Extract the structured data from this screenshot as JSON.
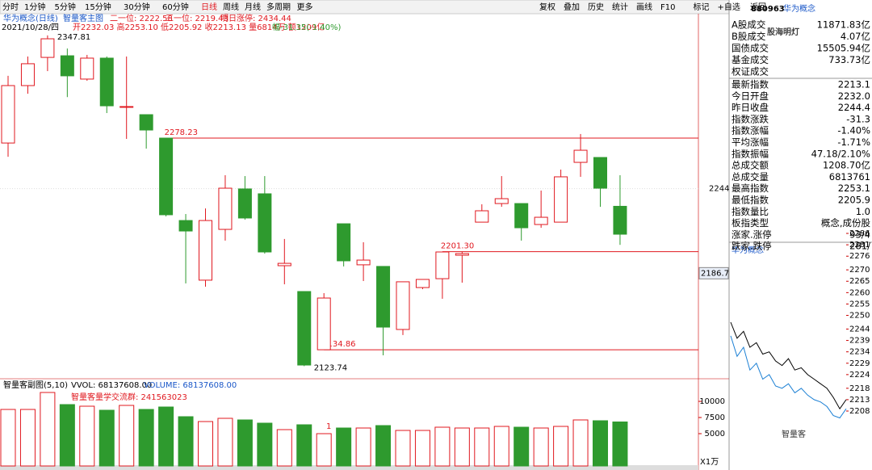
{
  "toolbar": {
    "left": [
      "分时",
      "1分钟",
      "5分钟",
      "15分钟",
      "30分钟",
      "60分钟",
      "日线",
      "周线",
      "月线",
      "多周期",
      "更多"
    ],
    "right": [
      "复权",
      "叠加",
      "历史",
      "统计",
      "画线",
      "F10",
      "标记",
      "+自选",
      "返回"
    ]
  },
  "info": {
    "name": "华为概念(日线)",
    "indicator": "智量客主图",
    "l1": "二一位: 2222.58",
    "l2": "三一位: 2219.43",
    "l3": "明日涨停: 2434.44",
    "date": "2021/10/28/四",
    "detail": "开2232.03 高2253.10 低2205.92 收2213.13 量6814万 额1209亿",
    "change": "幅-31.35(-1.40%)"
  },
  "volume_header": {
    "name": "智量客副图(5,10)",
    "vvol": "VVOL: 68137608.00",
    "volume": "VOLUME: 68137608.00",
    "group": "智量客量学交流群: 241563023",
    "marker": "1",
    "unit": "X1万"
  },
  "side": {
    "code": "880963",
    "name": "华为概念",
    "market": [
      [
        "A股成交",
        "11871.83亿"
      ],
      [
        "B股成交",
        "4.07亿"
      ],
      [
        "国债成交",
        "15505.94亿"
      ],
      [
        "基金成交",
        "733.73亿"
      ],
      [
        "权证成交",
        ""
      ]
    ],
    "stats": [
      [
        "最新指数",
        "2213.1"
      ],
      [
        "今日开盘",
        "2232.0"
      ],
      [
        "昨日收盘",
        "2244.4"
      ],
      [
        "指数涨跌",
        "-31.3"
      ],
      [
        "指数涨幅",
        "-1.40%"
      ],
      [
        "平均涨幅",
        "-1.71%"
      ],
      [
        "指数振幅",
        "47.18/2.10%"
      ],
      [
        "总成交额",
        "1208.70亿"
      ],
      [
        "总成交量",
        "6813761"
      ],
      [
        "最高指数",
        "2253.1"
      ],
      [
        "最低指数",
        "2205.9"
      ],
      [
        "指数量比",
        "1.0"
      ],
      [
        "板指类型",
        "概念,成份股"
      ],
      [
        "涨家.涨停",
        "93/4"
      ],
      [
        "跌家.跌停",
        "281/"
      ]
    ],
    "mini_title": "华为概念"
  },
  "watermark": [
    "股海明灯",
    "智量客"
  ],
  "chart_data": [
    {
      "type": "candlestick",
      "up_color": "#e0181f",
      "down_color": "#2e9a2e",
      "open": [
        2274.9,
        2313.8,
        2332.9,
        2334.0,
        2318.2,
        2332.4,
        2299.6,
        2294.1,
        2278.23,
        2222.4,
        2182.0,
        2216.4,
        2243.8,
        2240.5,
        2191.8,
        2174.3,
        2134.86,
        2220.2,
        2192.4,
        2191.3,
        2148.6,
        2177.0,
        2183.0,
        2198.9,
        2221.3,
        2233.9,
        2233.9,
        2219.7,
        2221.3,
        2261.8,
        2265.1,
        2232.03
      ],
      "high": [
        2320.4,
        2333.5,
        2347.81,
        2338.9,
        2334.6,
        2333.5,
        2333.5,
        2294.1,
        2278.23,
        2226.8,
        2230.6,
        2253.1,
        2252.5,
        2252.5,
        2209.9,
        2174.3,
        2173.2,
        2220.2,
        2207.7,
        2191.3,
        2180.9,
        2182.5,
        2201.3,
        2201.1,
        2233.4,
        2252.5,
        2233.9,
        2242.7,
        2256.9,
        2281.0,
        2265.1,
        2253.1
      ],
      "low": [
        2265.6,
        2308.3,
        2323.6,
        2306.0,
        2317.1,
        2295.2,
        2277.7,
        2271.1,
        2225.2,
        2179.8,
        2177.6,
        2208.8,
        2223.0,
        2200.0,
        2179.2,
        2123.74,
        2134.86,
        2191.3,
        2181.4,
        2131.1,
        2144.8,
        2175.9,
        2169.4,
        2180.3,
        2221.3,
        2231.7,
        2208.8,
        2217.5,
        2221.3,
        2252.0,
        2231.7,
        2205.92
      ],
      "close": [
        2313.8,
        2328.6,
        2345.5,
        2320.4,
        2332.4,
        2300.1,
        2299.6,
        2283.7,
        2226.3,
        2215.3,
        2222.4,
        2244.3,
        2224.1,
        2201.1,
        2193.4,
        2124.5,
        2169.9,
        2195.1,
        2195.6,
        2150.2,
        2180.9,
        2182.5,
        2201.1,
        2200.0,
        2229.0,
        2237.2,
        2217.5,
        2224.6,
        2252.0,
        2270.0,
        2244.3,
        2213.13
      ],
      "ylim": [
        2119.05,
        2348.8
      ],
      "yticks": [
        2244
      ],
      "cursor_value": 2186.7,
      "lines": [
        2278.23,
        {
          "value": 2201.3,
          "label": "2201.30"
        },
        2134.86
      ],
      "high_label": 2347.81,
      "low_label": 2123.74
    },
    {
      "type": "bar",
      "values": [
        8750,
        8750,
        11375,
        9500,
        9250,
        8625,
        9375,
        8750,
        9125,
        7625,
        6875,
        7375,
        7125,
        6625,
        5625,
        6375,
        5000,
        5875,
        5875,
        6250,
        5500,
        5500,
        6000,
        5875,
        5875,
        6125,
        6000,
        5875,
        6125,
        7125,
        7000,
        6813.76
      ],
      "ylim": [
        0,
        12500
      ],
      "yticks": [
        5000,
        7500,
        10000
      ]
    },
    {
      "type": "line",
      "series": [
        {
          "color": "#000000",
          "values": [
            2247,
            2240,
            2243,
            2236,
            2238,
            2233,
            2234,
            2230,
            2228,
            2231,
            2226,
            2227,
            2224,
            2222,
            2220,
            2218,
            2214,
            2209,
            2213
          ]
        },
        {
          "color": "#1a7fd4",
          "values": [
            2241,
            2232,
            2236,
            2226,
            2229,
            2222,
            2224,
            2219,
            2218,
            2220,
            2216,
            2218,
            2215,
            2213,
            2212,
            2210,
            2206,
            2205,
            2209
          ]
        }
      ],
      "ylim": [
        2204.1,
        2289.2
      ],
      "yticks": [
        2286,
        2281,
        2276,
        2270,
        2265,
        2260,
        2255,
        2250,
        2244,
        2239,
        2234,
        2229,
        2224,
        2218,
        2213,
        2208
      ]
    }
  ]
}
